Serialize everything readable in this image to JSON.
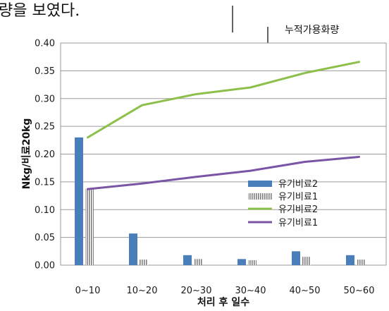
{
  "page_fragment_text": "량을 보였다.",
  "chart_data": {
    "type": "bar",
    "categories": [
      "0~10",
      "10~20",
      "20~30",
      "30~40",
      "40~50",
      "50~60"
    ],
    "xlabel": "처리 후 일수",
    "ylabel": "Nkg/비료20kg",
    "ylim": [
      0,
      0.4
    ],
    "yticks": [
      "0.00",
      "0.05",
      "0.10",
      "0.15",
      "0.20",
      "0.25",
      "0.30",
      "0.35",
      "0.40"
    ],
    "grid": true,
    "legend_placement": "center-right",
    "annotation": "누적가용화량",
    "bar_series": [
      {
        "name": "유기비료2",
        "values": [
          0.23,
          0.057,
          0.018,
          0.011,
          0.025,
          0.018
        ],
        "color": "#4a7ebb",
        "pattern": "solid"
      },
      {
        "name": "유기비료1",
        "values": [
          0.137,
          0.01,
          0.011,
          0.009,
          0.015,
          0.01
        ],
        "color": "#7f7f7f",
        "pattern": "vertical-stripes"
      }
    ],
    "line_series": [
      {
        "name": "유기비료2",
        "values": [
          0.23,
          0.288,
          0.308,
          0.32,
          0.346,
          0.366
        ],
        "color": "#8cc04b"
      },
      {
        "name": "유기비료1",
        "values": [
          0.137,
          0.147,
          0.159,
          0.17,
          0.186,
          0.195
        ],
        "color": "#7a55a5"
      }
    ]
  }
}
